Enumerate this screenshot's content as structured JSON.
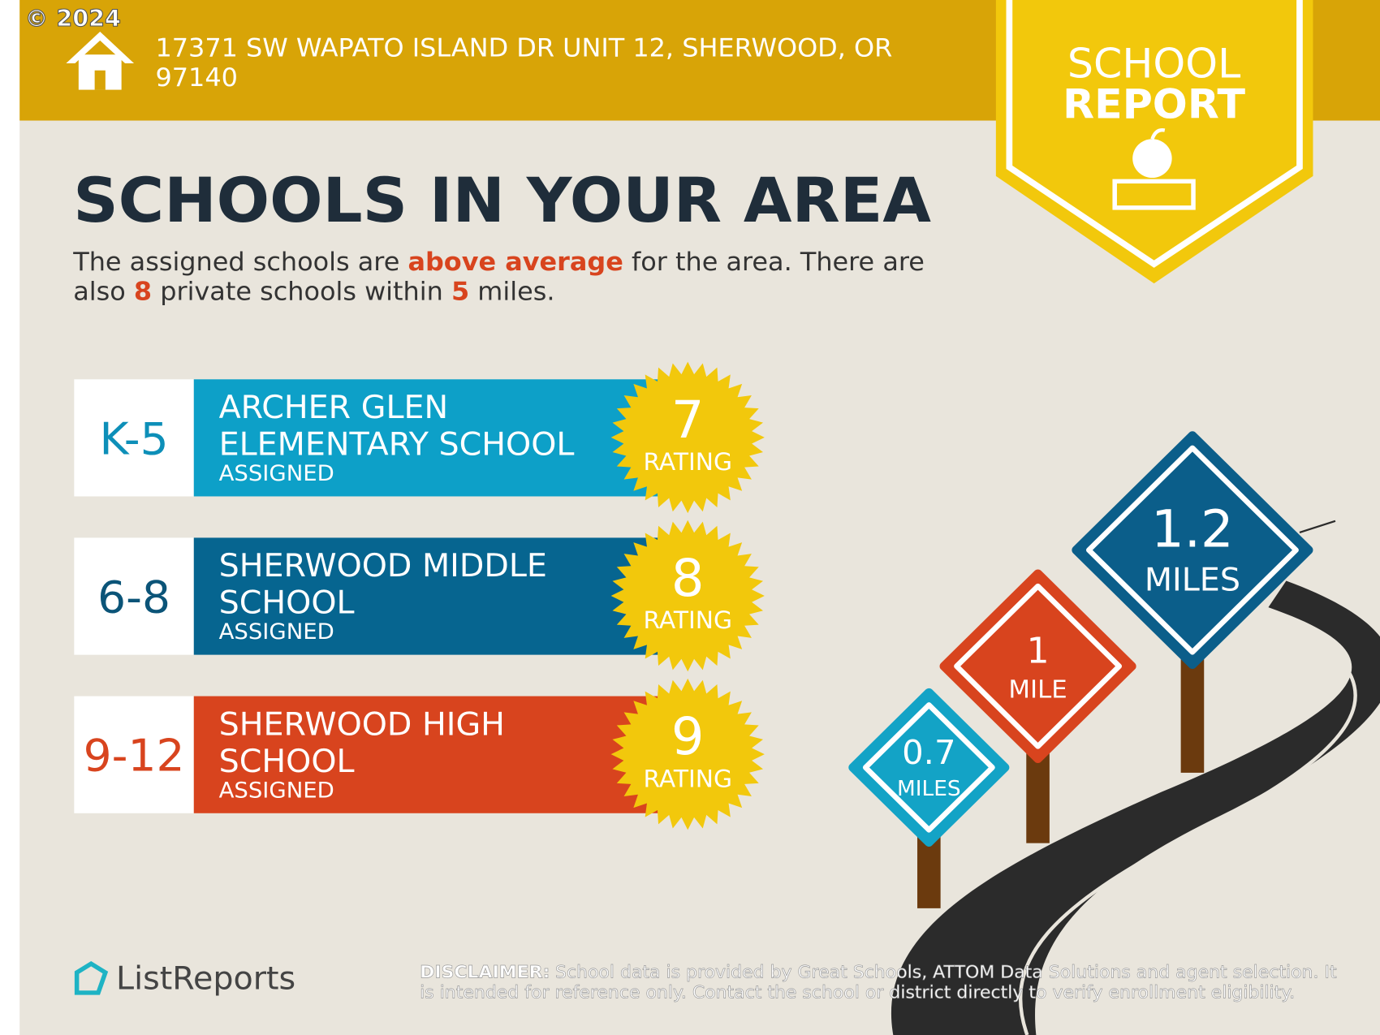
{
  "copyright": "© 2024",
  "address": [
    "17371 SW WAPATO ISLAND DR UNIT 12, SHERWOOD, OR",
    "97140"
  ],
  "badge": [
    "SCHOOL",
    "REPORT"
  ],
  "heading": "SCHOOLS IN YOUR AREA",
  "summary": {
    "line1": [
      "The assigned schools are ",
      "above average",
      " for the area. There are"
    ],
    "line2": [
      "also ",
      "8",
      " private schools within ",
      "5",
      " miles."
    ]
  },
  "schools": [
    {
      "grades": "K-5",
      "name": [
        "ARCHER GLEN",
        "ELEMENTARY SCHOOL"
      ],
      "status": "ASSIGNED",
      "rating": 7,
      "rating_label": "RATING"
    },
    {
      "grades": "6-8",
      "name": [
        "SHERWOOD MIDDLE",
        "SCHOOL"
      ],
      "status": "ASSIGNED",
      "rating": 8,
      "rating_label": "RATING"
    },
    {
      "grades": "9-12",
      "name": [
        "SHERWOOD HIGH",
        "SCHOOL"
      ],
      "status": "ASSIGNED",
      "rating": 9,
      "rating_label": "RATING"
    }
  ],
  "distances": [
    {
      "value": "1.2",
      "unit": "MILES"
    },
    {
      "value": "1",
      "unit": "MILE"
    },
    {
      "value": "0.7",
      "unit": "MILES"
    }
  ],
  "logo": "ListReports",
  "disclaimer": {
    "label": "DISCLAIMER:",
    "text": [
      "School data is provided by Great Schools, ATTOM Data Solutions and agent selection. It",
      "is intended for reference only. Contact the school or district directly to verify enrollment eligibility."
    ]
  }
}
